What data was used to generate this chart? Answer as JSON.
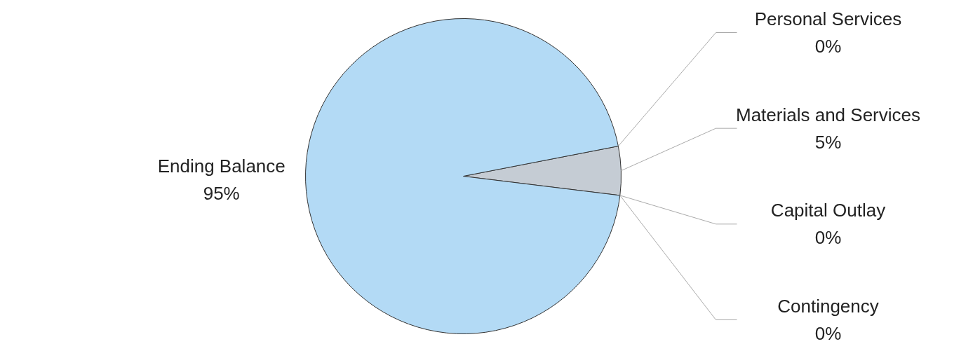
{
  "chart_data": {
    "type": "pie",
    "categories": [
      "Personal Services",
      "Materials and Services",
      "Capital Outlay",
      "Contingency",
      "Ending Balance"
    ],
    "values": [
      0,
      5,
      0,
      0,
      95
    ],
    "value_labels": [
      "0%",
      "5%",
      "0%",
      "0%",
      "95%"
    ],
    "colors": [
      "#5b7fa8",
      "#c5ccd4",
      "#7a9cc0",
      "#2f4f6f",
      "#b3daf5"
    ]
  }
}
